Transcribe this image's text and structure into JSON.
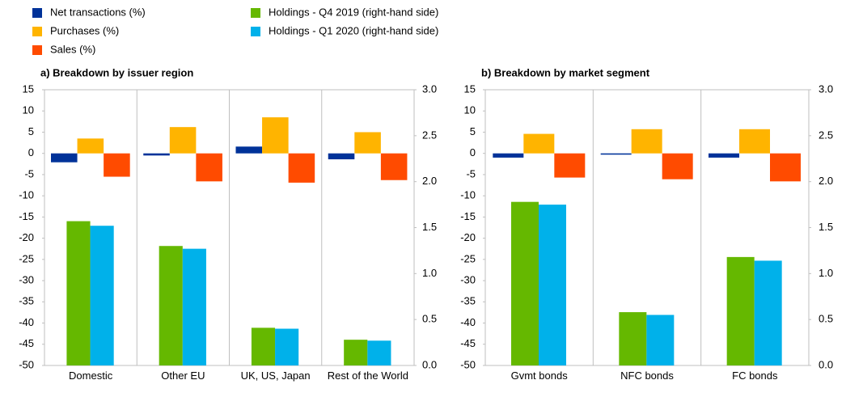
{
  "chart_data": [
    {
      "type": "bar",
      "title": "a) Breakdown by issuer region",
      "categories": [
        "Domestic",
        "Other EU",
        "UK, US, Japan",
        "Rest of the World"
      ],
      "ylim": [
        -50,
        15
      ],
      "yticks": [
        -50,
        -45,
        -40,
        -35,
        -30,
        -25,
        -20,
        -15,
        -10,
        -5,
        0,
        5,
        10,
        15
      ],
      "y2lim": [
        0,
        3
      ],
      "y2ticks": [
        {
          "value": 0,
          "label": "0.0"
        },
        0.5,
        {
          "value": 1,
          "label": "1.0"
        },
        1.5,
        {
          "value": 2,
          "label": "2.0"
        },
        2.5,
        {
          "value": 3,
          "label": "3.0"
        }
      ],
      "series": [
        {
          "name": "Net transactions (%)",
          "color": "#003299",
          "values": [
            -2.1,
            -0.5,
            1.6,
            -1.4
          ]
        },
        {
          "name": "Purchases (%)",
          "color": "#ffb400",
          "values": [
            3.5,
            6.2,
            8.5,
            5.0
          ]
        },
        {
          "name": "Sales (%)",
          "color": "#ff4b00",
          "values": [
            -5.5,
            -6.6,
            -6.9,
            -6.3
          ]
        },
        {
          "name": "Holdings - Q4 2019 (right-hand side)",
          "color": "#65b800",
          "axis": "y2",
          "values": [
            1.57,
            1.3,
            0.41,
            0.28
          ]
        },
        {
          "name": "Holdings - Q1 2020 (right-hand side)",
          "color": "#00b1ea",
          "axis": "y2",
          "values": [
            1.52,
            1.27,
            0.4,
            0.27
          ]
        }
      ]
    },
    {
      "type": "bar",
      "title": "b) Breakdown by market segment",
      "categories": [
        "Gvmt bonds",
        "NFC bonds",
        "FC bonds"
      ],
      "ylim": [
        -50,
        15
      ],
      "yticks": [
        -50,
        -45,
        -40,
        -35,
        -30,
        -25,
        -20,
        -15,
        -10,
        -5,
        0,
        5,
        10,
        15
      ],
      "y2lim": [
        0,
        3
      ],
      "y2ticks": [
        {
          "value": 0,
          "label": "0.0"
        },
        0.5,
        {
          "value": 1,
          "label": "1.0"
        },
        1.5,
        {
          "value": 2,
          "label": "2.0"
        },
        2.5,
        {
          "value": 3,
          "label": "3.0"
        }
      ],
      "series": [
        {
          "color": "#003299",
          "values": [
            -1.0,
            -0.3,
            -1.0
          ]
        },
        {
          "color": "#ffb400",
          "values": [
            4.6,
            5.7,
            5.7
          ]
        },
        {
          "color": "#ff4b00",
          "values": [
            -5.7,
            -6.1,
            -6.6
          ]
        },
        {
          "color": "#65b800",
          "axis": "y2",
          "values": [
            1.78,
            0.58,
            1.18
          ]
        },
        {
          "color": "#00b1ea",
          "axis": "y2",
          "values": [
            1.75,
            0.55,
            1.14
          ]
        }
      ]
    }
  ]
}
